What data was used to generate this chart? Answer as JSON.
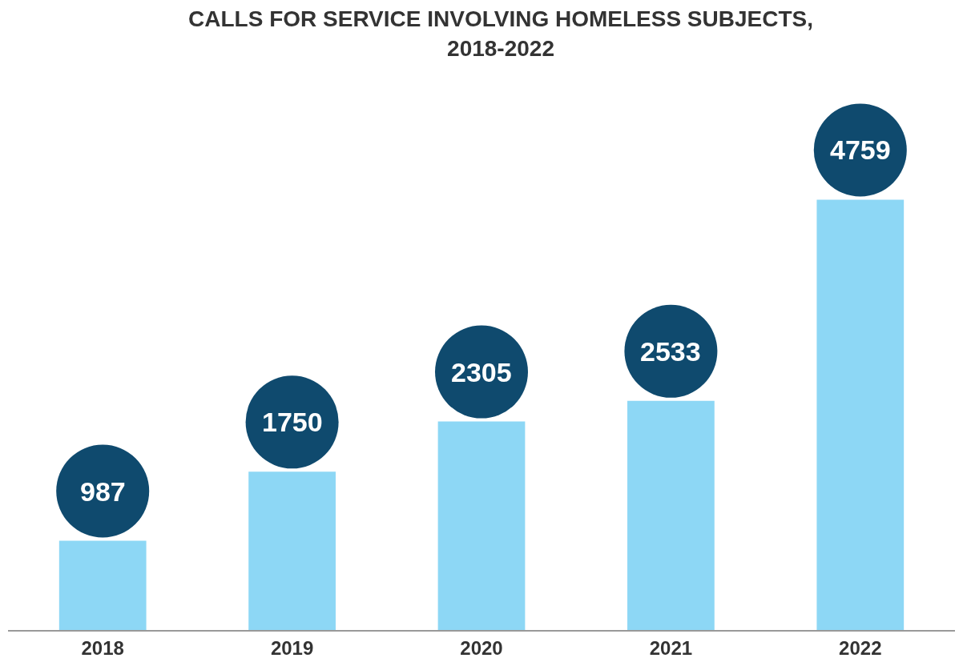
{
  "chart_data": {
    "type": "bar",
    "title": "CALLS FOR SERVICE INVOLVING HOMELESS SUBJECTS, 2018-2022",
    "categories": [
      "2018",
      "2019",
      "2020",
      "2021",
      "2022"
    ],
    "values": [
      987,
      1750,
      2305,
      2533,
      4759
    ],
    "color": "#8dd7f5",
    "data_labels": true,
    "legend": false
  }
}
